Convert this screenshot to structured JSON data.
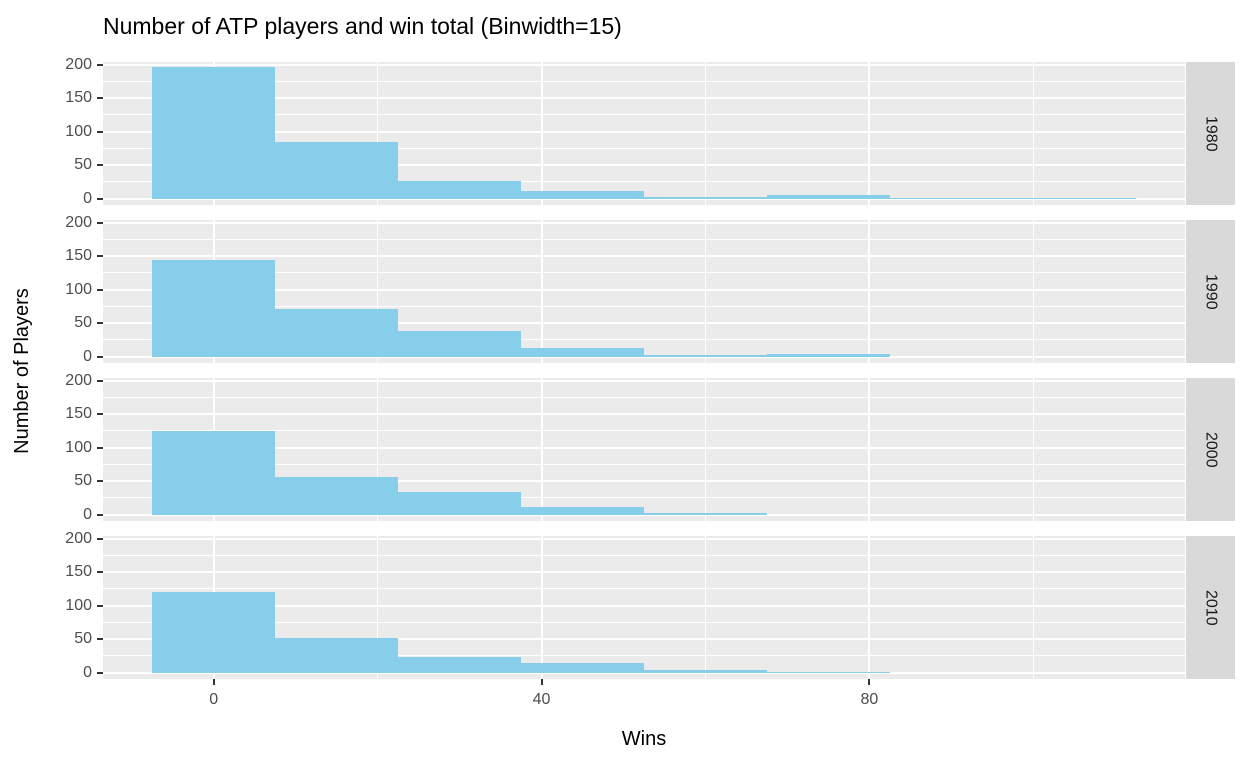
{
  "chart_data": {
    "type": "bar",
    "subtype": "faceted-histogram",
    "title": "Number of ATP players and win total (Binwidth=15)",
    "xlabel": "Wins",
    "ylabel": "Number of Players",
    "binwidth": 15,
    "bin_start": -7.5,
    "x_ticks": [
      0,
      40,
      80
    ],
    "x_tick_labels": [
      "0",
      "40",
      "80"
    ],
    "y_ticks": [
      200,
      150,
      100,
      50,
      0
    ],
    "y_tick_labels": [
      "200",
      "150",
      "100",
      "50",
      "0"
    ],
    "xlim": [
      -13.5,
      118.5
    ],
    "ylim": [
      -10,
      204
    ],
    "x_minor_gridlines": [
      20,
      60,
      100
    ],
    "y_minor_gridlines": [
      25,
      75,
      125,
      175
    ],
    "grid": true,
    "legend_position": "none",
    "facet_strip_position": "right",
    "facets": [
      {
        "label": "1980",
        "bin_centers": [
          0,
          15,
          30,
          45,
          60,
          75,
          90,
          105
        ],
        "counts": [
          197,
          85,
          27,
          12,
          3,
          5,
          1,
          1
        ]
      },
      {
        "label": "1990",
        "bin_centers": [
          0,
          15,
          30,
          45,
          60,
          75
        ],
        "counts": [
          144,
          71,
          38,
          13,
          2,
          4
        ]
      },
      {
        "label": "2000",
        "bin_centers": [
          0,
          15,
          30,
          45,
          60
        ],
        "counts": [
          125,
          57,
          34,
          11,
          3
        ]
      },
      {
        "label": "2010",
        "bin_centers": [
          0,
          15,
          30,
          45,
          60,
          75
        ],
        "counts": [
          120,
          52,
          24,
          14,
          4,
          1
        ]
      }
    ],
    "colors": {
      "bar": "#87CEEB",
      "panel_background": "#EBEBEB",
      "strip_background": "#D9D9D9",
      "strip_text": "#1A1A1A",
      "gridline": "#FFFFFF",
      "tick_label": "#4D4D4D",
      "tick_mark": "#333333",
      "title_text": "#000000"
    }
  }
}
